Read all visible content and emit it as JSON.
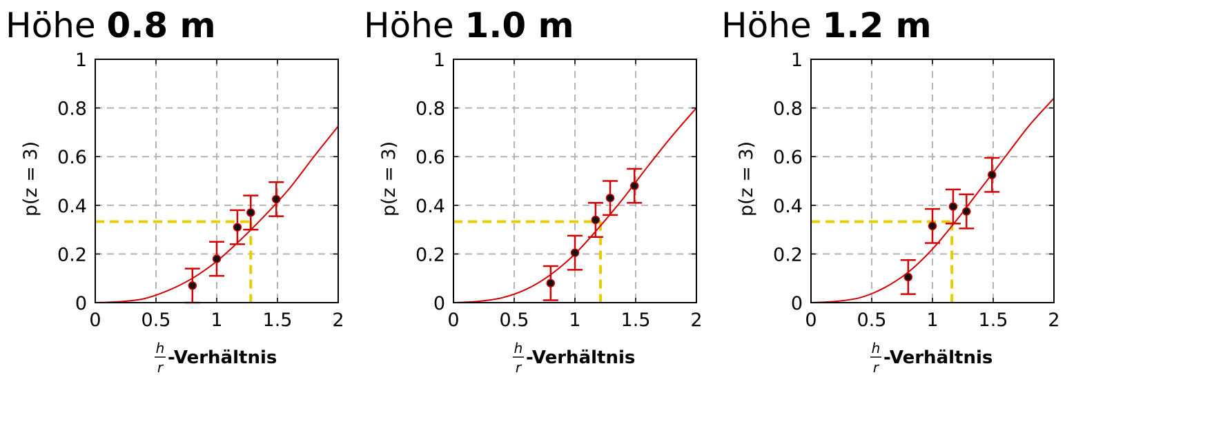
{
  "chart_data": [
    {
      "type": "scatter",
      "title_prefix": "Höhe",
      "title_value": "0.8 m",
      "ylabel": "p(z = 3)",
      "xlabel": "-Verhältnis",
      "xlabel_fraction": {
        "numerator": "h",
        "denominator": "r"
      },
      "xlim": [
        0,
        2
      ],
      "ylim": [
        0,
        1
      ],
      "xticks": [
        "0",
        "0.5",
        "1",
        "1.5",
        "2"
      ],
      "yticks": [
        "0",
        "0.2",
        "0.4",
        "0.6",
        "0.8",
        "1"
      ],
      "grid": true,
      "x": [
        0.8,
        1.0,
        1.17,
        1.28,
        1.49
      ],
      "y": [
        0.07,
        0.18,
        0.31,
        0.37,
        0.425
      ],
      "yerr": [
        0.07,
        0.07,
        0.07,
        0.07,
        0.07
      ],
      "fit_curve": [
        [
          0,
          0
        ],
        [
          0.2,
          0.004
        ],
        [
          0.4,
          0.016
        ],
        [
          0.6,
          0.05
        ],
        [
          0.8,
          0.1
        ],
        [
          1.0,
          0.17
        ],
        [
          1.2,
          0.26
        ],
        [
          1.4,
          0.36
        ],
        [
          1.6,
          0.47
        ],
        [
          1.8,
          0.6
        ],
        [
          2.0,
          0.725
        ]
      ],
      "threshold": {
        "x": 1.28,
        "y": 0.333
      }
    },
    {
      "type": "scatter",
      "title_prefix": "Höhe",
      "title_value": "1.0 m",
      "ylabel": "p(z = 3)",
      "xlabel": "-Verhältnis",
      "xlabel_fraction": {
        "numerator": "h",
        "denominator": "r"
      },
      "xlim": [
        0,
        2
      ],
      "ylim": [
        0,
        1
      ],
      "xticks": [
        "0",
        "0.5",
        "1",
        "1.5",
        "2"
      ],
      "yticks": [
        "0",
        "0.2",
        "0.4",
        "0.6",
        "0.8",
        "1"
      ],
      "grid": true,
      "x": [
        0.8,
        1.0,
        1.17,
        1.29,
        1.49
      ],
      "y": [
        0.08,
        0.205,
        0.34,
        0.43,
        0.48
      ],
      "yerr": [
        0.07,
        0.07,
        0.07,
        0.07,
        0.07
      ],
      "fit_curve": [
        [
          0,
          0
        ],
        [
          0.2,
          0.005
        ],
        [
          0.4,
          0.02
        ],
        [
          0.6,
          0.055
        ],
        [
          0.8,
          0.115
        ],
        [
          1.0,
          0.2
        ],
        [
          1.2,
          0.31
        ],
        [
          1.4,
          0.43
        ],
        [
          1.6,
          0.56
        ],
        [
          1.8,
          0.685
        ],
        [
          2.0,
          0.8
        ]
      ],
      "threshold": {
        "x": 1.21,
        "y": 0.333
      }
    },
    {
      "type": "scatter",
      "title_prefix": "Höhe",
      "title_value": "1.2 m",
      "ylabel": "p(z = 3)",
      "xlabel": "-Verhältnis",
      "xlabel_fraction": {
        "numerator": "h",
        "denominator": "r"
      },
      "xlim": [
        0,
        2
      ],
      "ylim": [
        0,
        1
      ],
      "xticks": [
        "0",
        "0.5",
        "1",
        "1.5",
        "2"
      ],
      "yticks": [
        "0",
        "0.2",
        "0.4",
        "0.6",
        "0.8",
        "1"
      ],
      "grid": true,
      "x": [
        0.8,
        1.0,
        1.17,
        1.28,
        1.49
      ],
      "y": [
        0.105,
        0.315,
        0.395,
        0.375,
        0.525
      ],
      "yerr": [
        0.07,
        0.07,
        0.07,
        0.07,
        0.07
      ],
      "fit_curve": [
        [
          0,
          0
        ],
        [
          0.2,
          0.005
        ],
        [
          0.4,
          0.02
        ],
        [
          0.6,
          0.06
        ],
        [
          0.8,
          0.125
        ],
        [
          1.0,
          0.22
        ],
        [
          1.2,
          0.34
        ],
        [
          1.4,
          0.47
        ],
        [
          1.6,
          0.6
        ],
        [
          1.8,
          0.73
        ],
        [
          2.0,
          0.84
        ]
      ],
      "threshold": {
        "x": 1.16,
        "y": 0.333
      }
    }
  ],
  "colors": {
    "curve": "#d40000",
    "errorbar": "#d40000",
    "marker_fill": "#111111",
    "threshold": "#e6cc00",
    "grid": "#b4b4b4",
    "axis": "#000000"
  }
}
